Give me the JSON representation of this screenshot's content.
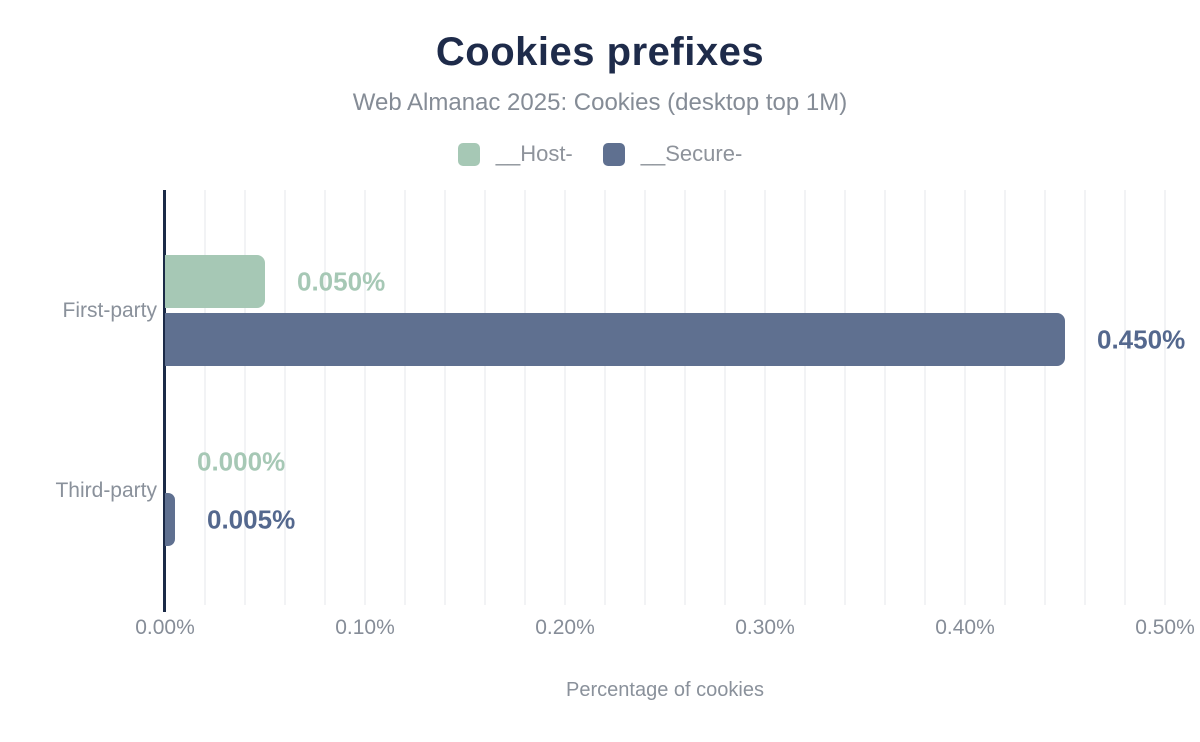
{
  "chart_data": {
    "type": "bar",
    "orientation": "horizontal",
    "title": "Cookies prefixes",
    "subtitle": "Web Almanac 2025: Cookies (desktop top 1M)",
    "xlabel": "Percentage of cookies",
    "categories": [
      "First-party",
      "Third-party"
    ],
    "series": [
      {
        "name": "__Host-",
        "color": "#a6c8b5",
        "label_color": "#a6c8b5",
        "values": [
          0.05,
          0.0
        ],
        "value_labels": [
          "0.050%",
          "0.000%"
        ]
      },
      {
        "name": "__Secure-",
        "color": "#5f7090",
        "label_color": "#54688e",
        "values": [
          0.45,
          0.005
        ],
        "value_labels": [
          "0.450%",
          "0.005%"
        ]
      }
    ],
    "xlim": [
      0,
      0.5
    ],
    "xticks": {
      "values": [
        0,
        0.1,
        0.2,
        0.3,
        0.4,
        0.5
      ],
      "labels": [
        "0.00%",
        "0.10%",
        "0.20%",
        "0.30%",
        "0.40%",
        "0.50%"
      ]
    },
    "grid": {
      "show": true,
      "interval": 0.02,
      "direction": "vertical"
    },
    "legend_position": "top"
  },
  "colors": {
    "title": "#1e2b4a",
    "subtitle": "#858c96",
    "axis": "#1b2a47",
    "gridline": "#f2f3f5",
    "text_gray": "#8a919b"
  }
}
